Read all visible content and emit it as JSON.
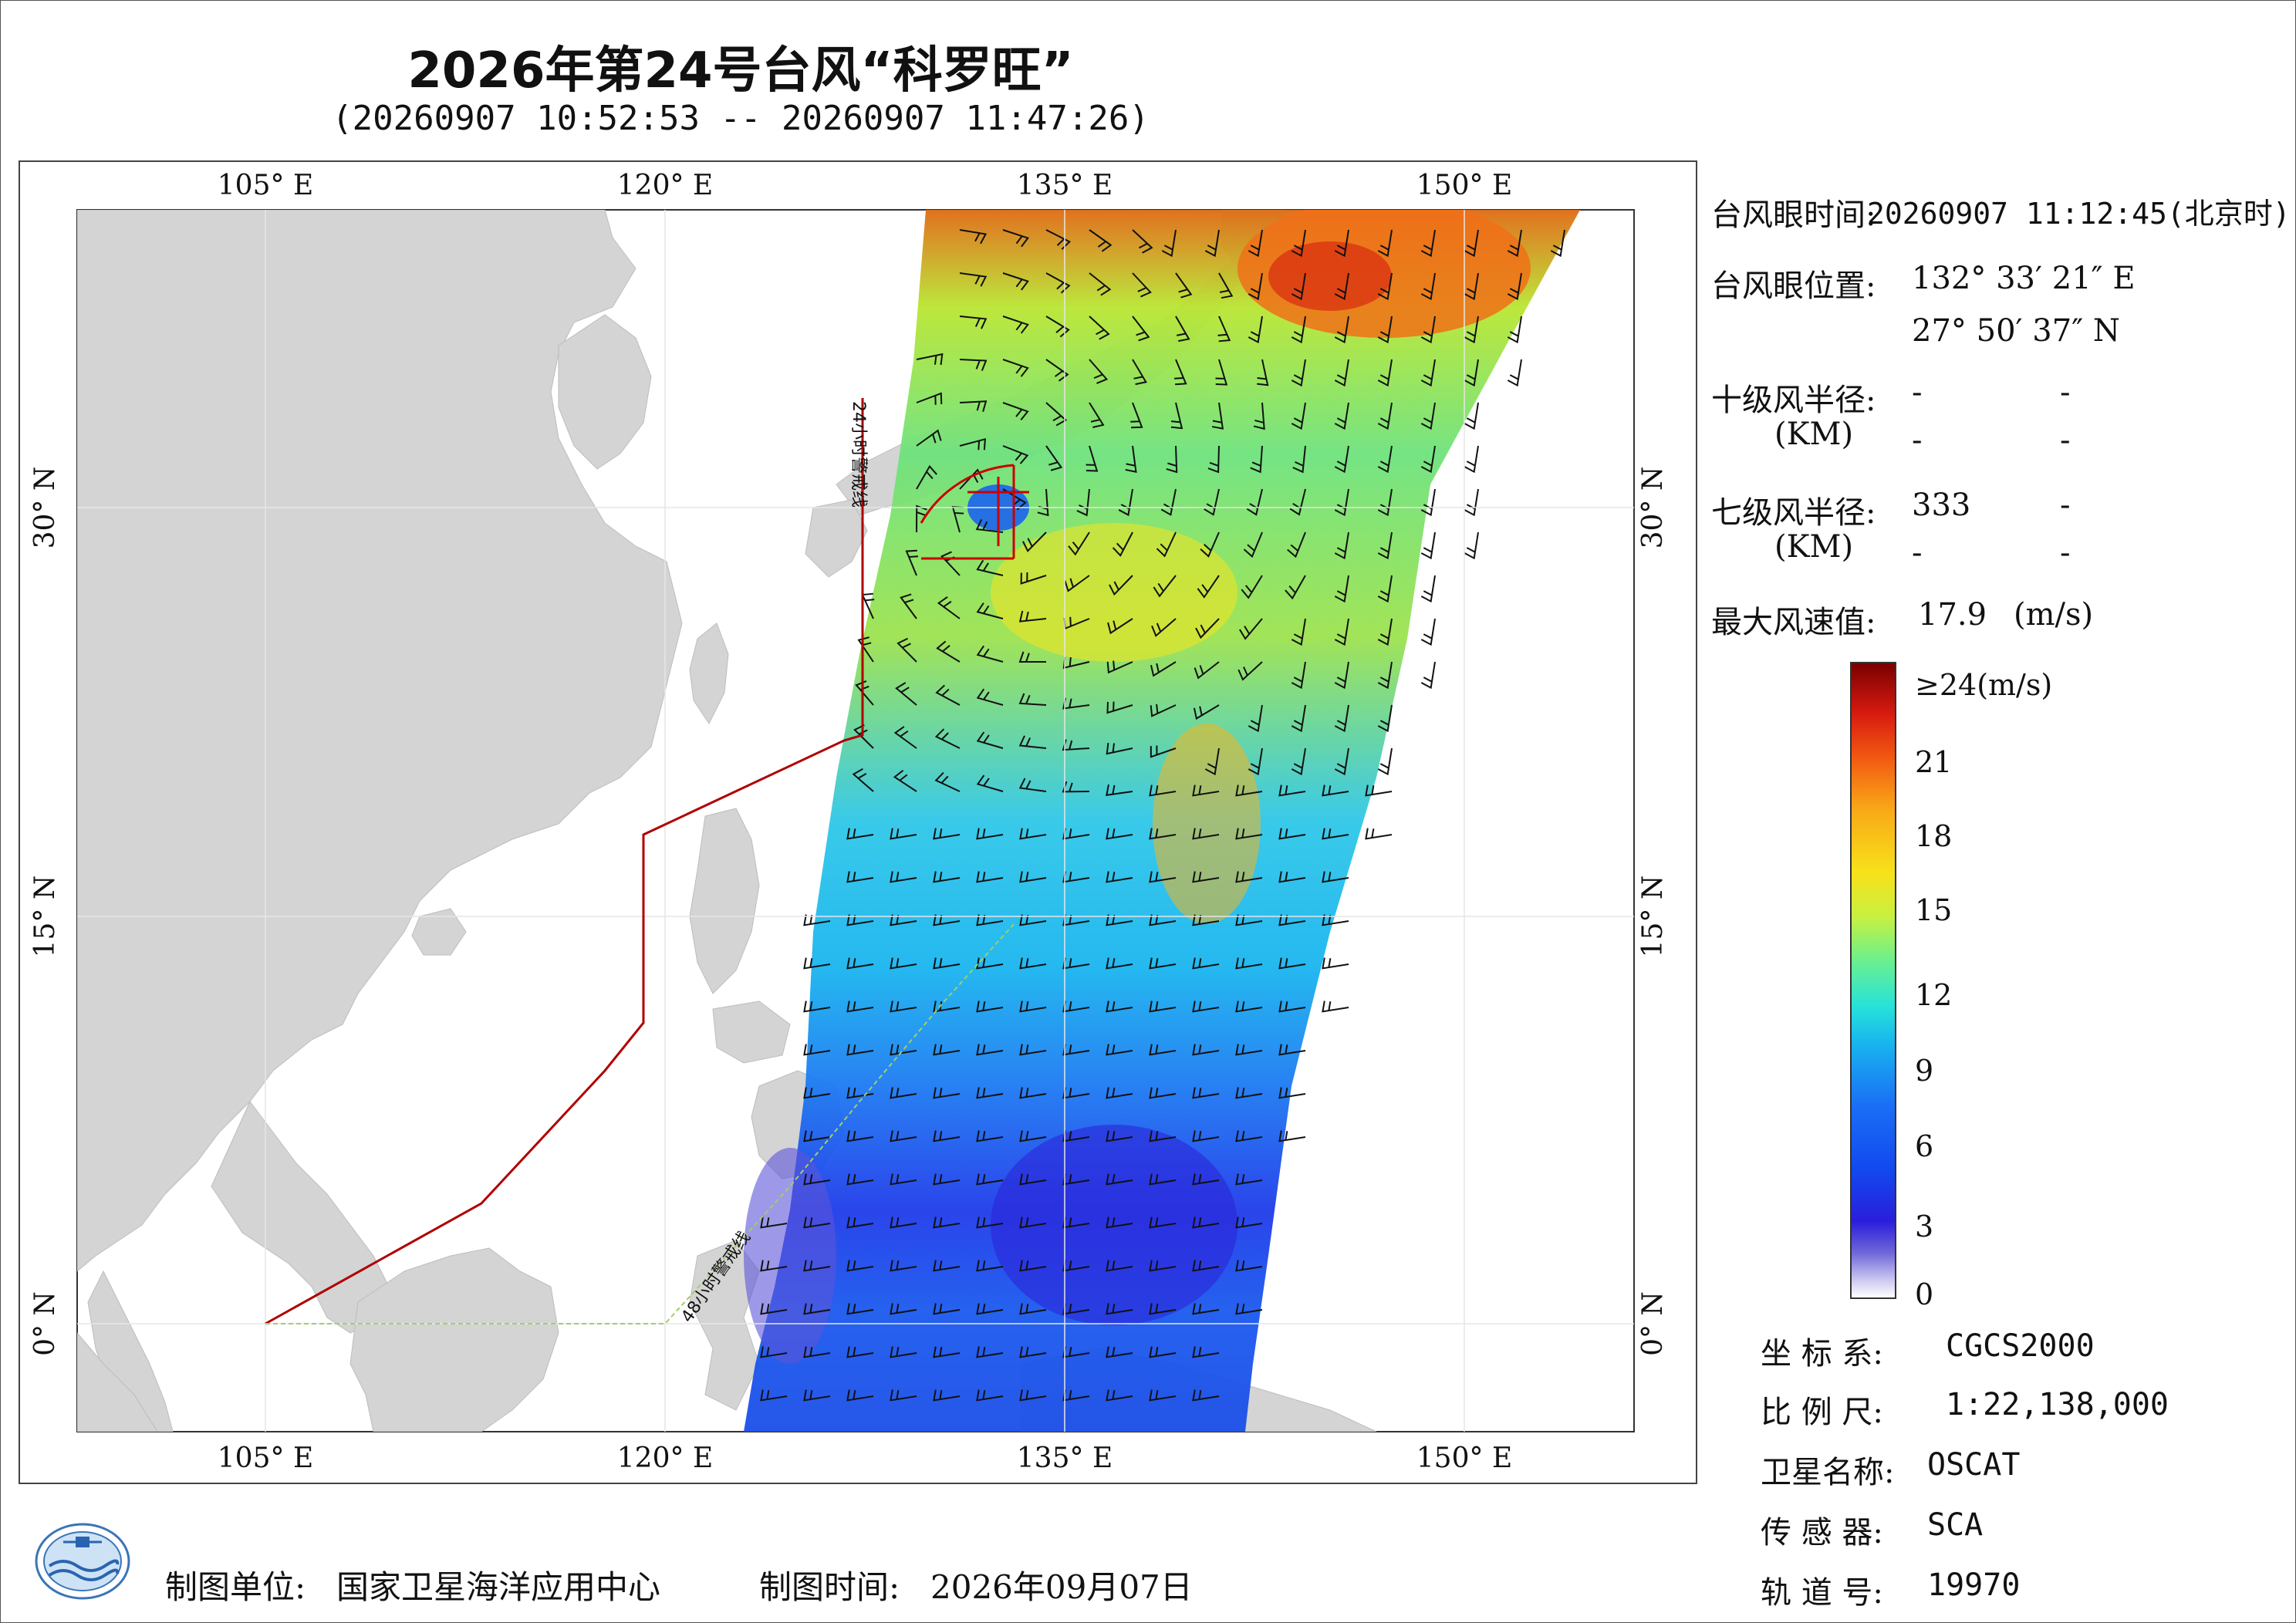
{
  "title": "2026年第24号台风“科罗旺”",
  "subtitle": "(20260907 10:52:53 -- 20260907 11:47:26)",
  "map": {
    "lon_ticks": [
      "105° E",
      "120° E",
      "135° E",
      "150° E"
    ],
    "lat_ticks": [
      "30° N",
      "15° N",
      "0° N"
    ],
    "warning_24h": "24小时警戒线",
    "warning_48h": "48小时警戒线",
    "colors": {
      "land": "#d3d3d3",
      "sea": "#ffffff",
      "warning_24h": "#b00000",
      "warning_48h": "#9fd067",
      "typhoon_marker": "#cc0000"
    }
  },
  "info": {
    "eye_time_label": "台风眼时间:",
    "eye_time_value": "20260907 11:12:45(北京时)",
    "eye_pos_label": "台风眼位置:",
    "eye_lon": "132° 33′ 21″ E",
    "eye_lat": "27° 50′ 37″ N",
    "r10_label": "十级风半径:",
    "r10_unit": "(KM)",
    "r10_values": [
      "-",
      "-",
      "-",
      "-"
    ],
    "r7_label": "七级风半径:",
    "r7_unit": "(KM)",
    "r7_values": [
      "333",
      "-",
      "-",
      "-"
    ],
    "max_wind_label": "最大风速值:",
    "max_wind_value": "17.9",
    "max_wind_unit": "(m/s)"
  },
  "legend": {
    "labels": [
      "≥24(m/s)",
      "21",
      "18",
      "15",
      "12",
      "9",
      "6",
      "3",
      "0"
    ],
    "max": 24,
    "min": 0,
    "unit": "m/s"
  },
  "meta": {
    "crs_label": "坐 标 系:",
    "crs_value": "CGCS2000",
    "scale_label": "比 例 尺:",
    "scale_value": "1:22,138,000",
    "satellite_label": "卫星名称:",
    "satellite_value": "OSCAT",
    "sensor_label": "传 感 器:",
    "sensor_value": "SCA",
    "orbit_label": "轨 道 号:",
    "orbit_value": "19970"
  },
  "footer": {
    "maker_label": "制图单位:",
    "maker_value": "国家卫星海洋应用中心",
    "date_label": "制图时间:",
    "date_value": "2026年09月07日"
  }
}
